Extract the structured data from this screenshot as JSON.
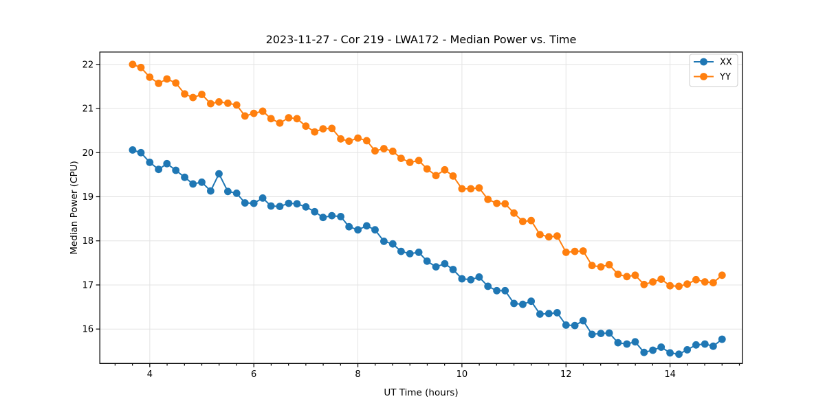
{
  "chart_data": {
    "type": "line",
    "title": "2023-11-27 - Cor 219 - LWA172 - Median Power vs. Time",
    "xlabel": "UT Time (hours)",
    "ylabel": "Median Power (CPU)",
    "grid": true,
    "legend_position": "upper right",
    "xlim": [
      3.04,
      15.39
    ],
    "ylim": [
      15.22,
      22.28
    ],
    "xticks": [
      4,
      6,
      8,
      10,
      12,
      14
    ],
    "yticks": [
      16,
      17,
      18,
      19,
      20,
      21,
      22
    ],
    "x_minor_tick_step": 0.33333,
    "x": [
      3.67,
      3.83,
      4.0,
      4.17,
      4.33,
      4.5,
      4.67,
      4.83,
      5.0,
      5.17,
      5.33,
      5.5,
      5.67,
      5.83,
      6.0,
      6.17,
      6.33,
      6.5,
      6.67,
      6.83,
      7.0,
      7.17,
      7.33,
      7.5,
      7.67,
      7.83,
      8.0,
      8.17,
      8.33,
      8.5,
      8.67,
      8.83,
      9.0,
      9.17,
      9.33,
      9.5,
      9.67,
      9.83,
      10.0,
      10.17,
      10.33,
      10.5,
      10.67,
      10.83,
      11.0,
      11.17,
      11.33,
      11.5,
      11.67,
      11.83,
      12.0,
      12.17,
      12.33,
      12.5,
      12.67,
      12.83,
      13.0,
      13.17,
      13.33,
      13.5,
      13.67,
      13.83,
      14.0,
      14.17,
      14.33,
      14.5,
      14.67,
      14.83,
      15.0
    ],
    "series": [
      {
        "name": "XX",
        "color": "#1f77b4",
        "marker": "circle",
        "values": [
          20.06,
          20.0,
          19.78,
          19.62,
          19.75,
          19.6,
          19.44,
          19.29,
          19.33,
          19.13,
          19.52,
          19.12,
          19.08,
          18.86,
          18.85,
          18.97,
          18.79,
          18.78,
          18.85,
          18.84,
          18.77,
          18.66,
          18.53,
          18.57,
          18.55,
          18.32,
          18.25,
          18.34,
          18.25,
          17.99,
          17.93,
          17.76,
          17.71,
          17.74,
          17.54,
          17.41,
          17.48,
          17.35,
          17.14,
          17.12,
          17.18,
          16.97,
          16.87,
          16.87,
          16.58,
          16.56,
          16.63,
          16.34,
          16.35,
          16.37,
          16.09,
          16.08,
          16.19,
          15.88,
          15.9,
          15.91,
          15.69,
          15.66,
          15.71,
          15.47,
          15.52,
          15.59,
          15.46,
          15.43,
          15.53,
          15.64,
          15.66,
          15.61,
          15.77
        ]
      },
      {
        "name": "YY",
        "color": "#ff7f0e",
        "marker": "circle",
        "values": [
          22.0,
          21.93,
          21.71,
          21.57,
          21.67,
          21.58,
          21.33,
          21.25,
          21.32,
          21.11,
          21.15,
          21.12,
          21.08,
          20.83,
          20.89,
          20.94,
          20.77,
          20.67,
          20.79,
          20.77,
          20.6,
          20.47,
          20.54,
          20.55,
          20.31,
          20.26,
          20.33,
          20.27,
          20.04,
          20.09,
          20.03,
          19.87,
          19.78,
          19.82,
          19.63,
          19.48,
          19.61,
          19.47,
          19.18,
          19.18,
          19.2,
          18.94,
          18.85,
          18.84,
          18.63,
          18.44,
          18.46,
          18.14,
          18.09,
          18.11,
          17.74,
          17.76,
          17.77,
          17.44,
          17.41,
          17.46,
          17.24,
          17.19,
          17.22,
          17.01,
          17.07,
          17.13,
          16.98,
          16.97,
          17.02,
          17.12,
          17.07,
          17.05,
          17.22
        ]
      }
    ]
  },
  "legend": {
    "items": [
      {
        "label": "XX",
        "color": "#1f77b4"
      },
      {
        "label": "YY",
        "color": "#ff7f0e"
      }
    ]
  }
}
